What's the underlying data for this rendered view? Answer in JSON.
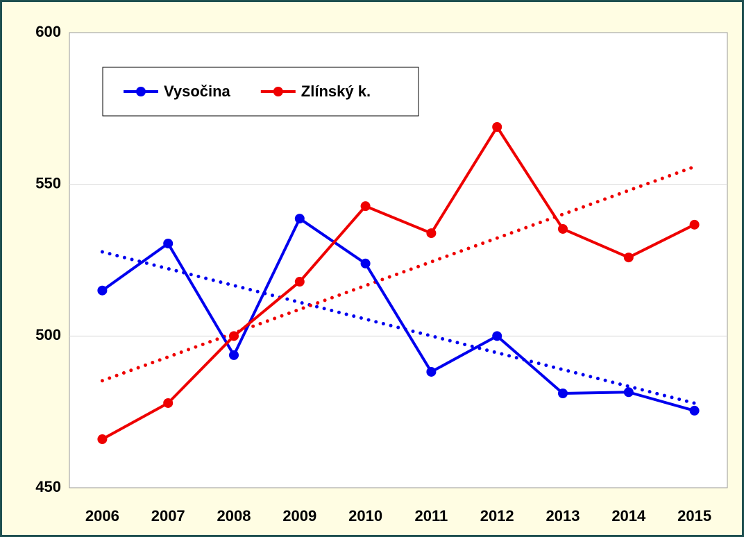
{
  "chart_data": {
    "type": "line",
    "categories": [
      "2006",
      "2007",
      "2008",
      "2009",
      "2010",
      "2011",
      "2012",
      "2013",
      "2014",
      "2015"
    ],
    "series": [
      {
        "name": "Vysočina",
        "color": "#0000ee",
        "values": [
          515,
          530.5,
          493.7,
          538.7,
          523.9,
          488.2,
          500,
          481.1,
          481.5,
          475.4
        ]
      },
      {
        "name": "Zlínský k.",
        "color": "#ee0000",
        "values": [
          466,
          477.9,
          500,
          517.9,
          542.8,
          533.9,
          568.9,
          535.3,
          525.9,
          536.7
        ]
      }
    ],
    "ylim": [
      450,
      600
    ],
    "yticks": [
      450,
      500,
      550,
      600
    ],
    "grid": true,
    "trendline": true,
    "legend": "top-left"
  }
}
